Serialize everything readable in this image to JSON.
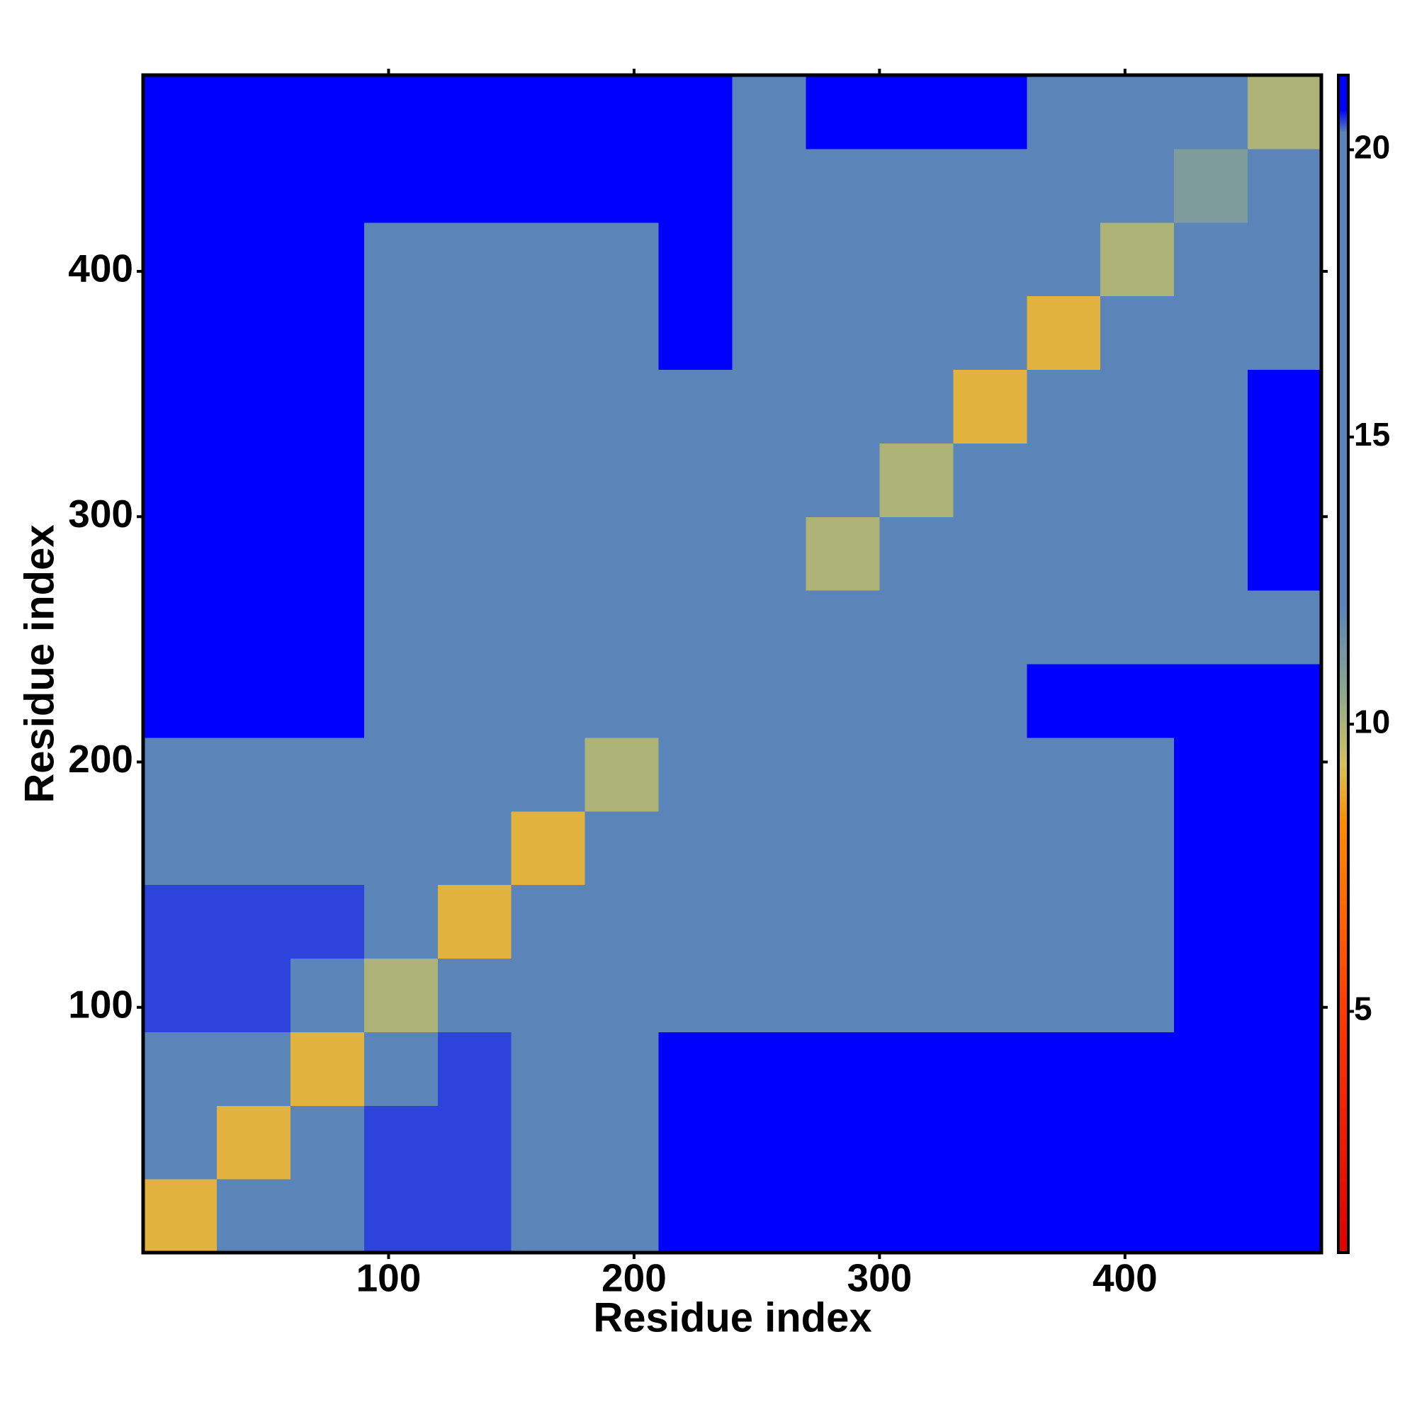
{
  "chart_data": {
    "type": "heatmap",
    "xlabel": "Residue index",
    "ylabel": "Residue index",
    "xlim": [
      0,
      480
    ],
    "ylim": [
      0,
      480
    ],
    "xticks": [
      100,
      200,
      300,
      400
    ],
    "yticks": [
      100,
      200,
      300,
      400
    ],
    "x_edges": [
      0,
      30,
      60,
      90,
      120,
      150,
      180,
      210,
      240,
      270,
      300,
      330,
      360,
      390,
      420,
      450,
      480
    ],
    "y_edges": [
      0,
      30,
      60,
      90,
      120,
      150,
      180,
      210,
      240,
      270,
      300,
      330,
      360,
      390,
      420,
      450,
      480
    ],
    "z": [
      [
        9,
        14,
        16,
        20.5,
        20.5,
        20,
        20,
        21,
        21,
        21,
        21,
        21,
        21,
        21,
        21,
        21
      ],
      [
        14,
        9,
        14,
        20.5,
        20.5,
        20,
        20,
        21,
        21,
        21,
        21,
        21,
        21,
        21,
        21,
        21
      ],
      [
        16,
        14,
        9,
        18,
        20.5,
        20,
        20,
        21,
        21,
        21,
        21,
        21,
        21,
        21,
        21,
        21
      ],
      [
        20.5,
        20.5,
        18,
        10,
        14,
        16,
        16,
        19,
        20,
        20,
        20,
        20,
        20,
        20,
        21,
        21
      ],
      [
        20.5,
        20.5,
        20.5,
        14,
        9,
        14,
        16,
        19,
        20,
        20,
        20,
        20,
        20,
        20,
        21,
        21
      ],
      [
        20,
        20,
        20,
        16,
        14,
        9,
        14,
        18,
        20,
        20,
        20,
        20,
        20,
        20,
        21,
        21
      ],
      [
        20,
        20,
        20,
        16,
        16,
        14,
        10,
        15,
        20,
        20,
        20,
        20,
        20,
        20,
        21,
        21
      ],
      [
        21,
        21,
        21,
        19,
        19,
        18,
        15,
        12,
        17,
        19,
        20,
        20,
        21,
        21,
        21,
        21
      ],
      [
        21,
        21,
        21,
        20,
        20,
        20,
        20,
        17,
        12,
        18,
        19,
        20,
        20,
        20,
        20,
        20
      ],
      [
        21,
        21,
        21,
        20,
        20,
        20,
        20,
        19,
        18,
        10,
        14,
        16,
        17,
        17,
        18,
        21
      ],
      [
        21,
        21,
        21,
        20,
        20,
        20,
        20,
        20,
        19,
        14,
        10,
        14,
        16,
        17,
        17,
        21
      ],
      [
        21,
        21,
        21,
        20,
        20,
        20,
        20,
        20,
        20,
        16,
        14,
        9,
        14,
        16,
        17,
        21
      ],
      [
        21,
        21,
        21,
        20,
        20,
        20,
        20,
        21,
        20,
        17,
        16,
        14,
        9,
        14,
        16,
        20
      ],
      [
        21,
        21,
        21,
        20,
        20,
        20,
        20,
        21,
        20,
        17,
        17,
        16,
        14,
        10,
        14,
        19
      ],
      [
        21,
        21,
        21,
        21,
        21,
        21,
        21,
        21,
        20,
        18,
        17,
        17,
        16,
        14,
        11,
        17
      ],
      [
        21,
        21,
        21,
        21,
        21,
        21,
        21,
        21,
        20,
        21,
        21,
        21,
        20,
        19,
        17,
        10
      ]
    ],
    "colorbar": {
      "lim": [
        0.8,
        21.3
      ],
      "ticks": [
        5,
        10,
        15,
        20
      ],
      "colorscale": [
        [
          0.8,
          "#e00000"
        ],
        [
          5,
          "#ff3a00"
        ],
        [
          8.3,
          "#ff8c00"
        ],
        [
          9.3,
          "#d6c25a"
        ],
        [
          10.5,
          "#8fa88c"
        ],
        [
          12,
          "#5b84b8"
        ],
        [
          20.3,
          "#5b84b8"
        ],
        [
          20.7,
          "#0000ff"
        ],
        [
          21.3,
          "#0000ff"
        ]
      ]
    }
  }
}
